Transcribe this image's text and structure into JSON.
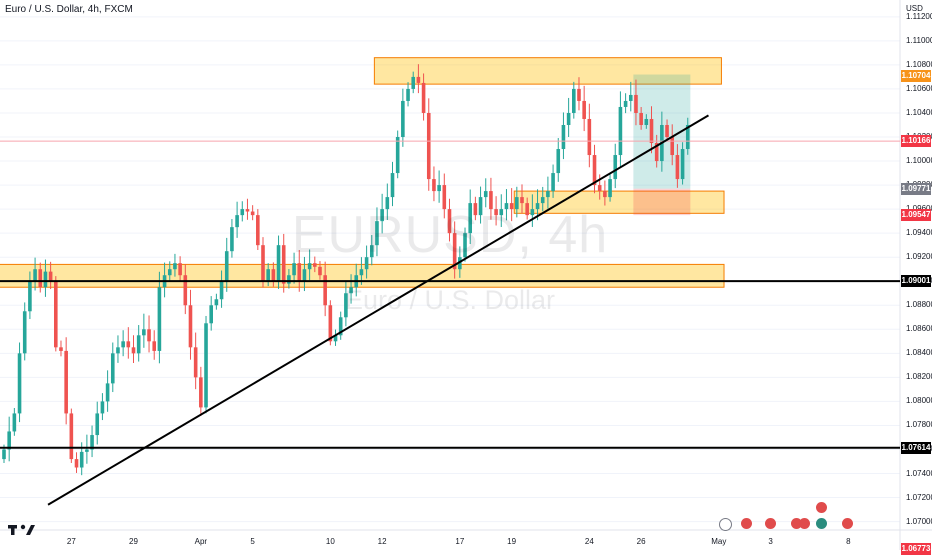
{
  "header": {
    "title": "Euro / U.S. Dollar, 4h, FXCM"
  },
  "watermark": {
    "symbol": "EURUSD, 4h",
    "name": "Euro / U.S. Dollar"
  },
  "price_axis": {
    "currency": "USD",
    "ticks": [
      "1.11200",
      "1.11000",
      "1.10800",
      "1.10600",
      "1.10400",
      "1.10200",
      "1.10000",
      "1.09800",
      "1.09600",
      "1.09400",
      "1.09200",
      "1.09000",
      "1.08800",
      "1.08600",
      "1.08400",
      "1.08200",
      "1.08000",
      "1.07800",
      "1.07600",
      "1.07400",
      "1.07200",
      "1.07000"
    ],
    "tags": [
      {
        "label": "1.10704",
        "value": 1.10704,
        "color": "#f7931a"
      },
      {
        "label": "1.10166",
        "value": 1.10166,
        "color": "#f23645"
      },
      {
        "label": "1.09771",
        "value": 1.09771,
        "color": "#787b86"
      },
      {
        "label": "1.09547",
        "value": 1.09547,
        "color": "#f23645"
      },
      {
        "label": "1.09001",
        "value": 1.09001,
        "color": "#000000"
      },
      {
        "label": "1.07614",
        "value": 1.07614,
        "color": "#000000"
      },
      {
        "label": "1.06773",
        "value": 1.06773,
        "color": "#f23645"
      }
    ]
  },
  "time_axis": {
    "ticks": [
      {
        "label": "27",
        "bar": 13
      },
      {
        "label": "29",
        "bar": 25
      },
      {
        "label": "Apr",
        "bar": 38
      },
      {
        "label": "5",
        "bar": 48
      },
      {
        "label": "10",
        "bar": 63
      },
      {
        "label": "12",
        "bar": 73
      },
      {
        "label": "17",
        "bar": 88
      },
      {
        "label": "19",
        "bar": 98
      },
      {
        "label": "24",
        "bar": 113
      },
      {
        "label": "26",
        "bar": 123
      },
      {
        "label": "May",
        "bar": 138
      },
      {
        "label": "3",
        "bar": 148
      },
      {
        "label": "8",
        "bar": 163
      }
    ]
  },
  "chart_data": {
    "type": "candlestick",
    "symbol": "EURUSD",
    "timeframe": "4h",
    "ylim": [
      1.0693,
      1.1134
    ],
    "up_color": "#26a69a",
    "down_color": "#ef5350",
    "closes": [
      1.076,
      1.0775,
      1.079,
      1.084,
      1.0875,
      1.09,
      1.091,
      1.0895,
      1.0908,
      1.09,
      1.0845,
      1.0842,
      1.079,
      1.0752,
      1.0745,
      1.0758,
      1.076,
      1.0772,
      1.079,
      1.08,
      1.0815,
      1.084,
      1.0845,
      1.085,
      1.0845,
      1.084,
      1.0855,
      1.086,
      1.085,
      1.0842,
      1.0895,
      1.0905,
      1.091,
      1.0915,
      1.0905,
      1.088,
      1.0845,
      1.082,
      1.0795,
      1.0865,
      1.088,
      1.0885,
      1.09,
      1.0925,
      1.0945,
      1.0955,
      1.096,
      1.0958,
      1.0955,
      1.093,
      1.09,
      1.091,
      1.09,
      1.093,
      1.0898,
      1.0905,
      1.0915,
      1.09,
      1.091,
      1.0915,
      1.0912,
      1.0905,
      1.088,
      1.085,
      1.0855,
      1.087,
      1.089,
      1.0895,
      1.0905,
      1.091,
      1.092,
      1.093,
      1.095,
      1.096,
      1.097,
      1.099,
      1.102,
      1.105,
      1.106,
      1.107,
      1.1065,
      1.104,
      1.0985,
      1.0975,
      1.098,
      1.096,
      1.094,
      1.091,
      1.092,
      1.094,
      1.0965,
      1.0955,
      1.097,
      1.0975,
      1.096,
      1.0955,
      1.096,
      1.0965,
      1.096,
      1.097,
      1.0965,
      1.0955,
      1.096,
      1.0965,
      1.097,
      1.0975,
      1.099,
      1.101,
      1.103,
      1.104,
      1.106,
      1.105,
      1.1035,
      1.1005,
      1.098,
      1.0975,
      1.097,
      1.0985,
      1.1005,
      1.1045,
      1.105,
      1.1055,
      1.104,
      1.103,
      1.1035,
      1.1015,
      1.1,
      1.103,
      1.102,
      1.1005,
      1.0985,
      1.101,
      1.103
    ],
    "drawings": {
      "zones": [
        {
          "bar_from": 71.5,
          "bar_to": 138.5,
          "price_from": 1.1064,
          "price_to": 1.1086
        },
        {
          "bar_from": -2,
          "bar_to": 139,
          "price_from": 1.0895,
          "price_to": 1.0914
        },
        {
          "bar_from": 98.5,
          "bar_to": 139,
          "price_from": 1.09565,
          "price_to": 1.0975
        }
      ],
      "hlines": [
        1.09001,
        1.07614
      ],
      "trendline": {
        "bar_from": 8.5,
        "price_from": 1.0714,
        "bar_to": 136,
        "price_to": 1.1038
      },
      "position": {
        "bar_from": 121.5,
        "bar_to": 132.5,
        "entry": 1.0977,
        "target": 1.1072,
        "stop": 1.0955
      }
    }
  }
}
